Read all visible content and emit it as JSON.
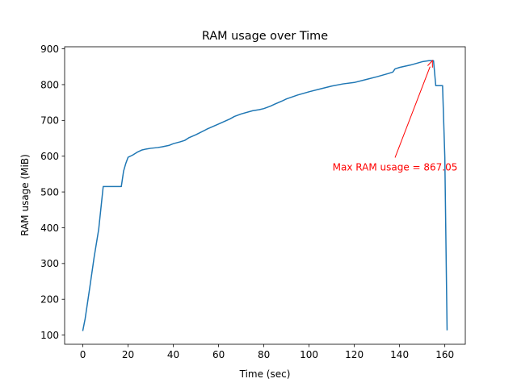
{
  "chart_data": {
    "type": "line",
    "title": "RAM usage over Time",
    "xlabel": "Time (sec)",
    "ylabel": "RAM usage (MiB)",
    "xlim": [
      -8.05,
      169.05
    ],
    "ylim": [
      74.3,
      905.8
    ],
    "x_ticks": [
      0,
      20,
      40,
      60,
      80,
      100,
      120,
      140,
      160
    ],
    "y_ticks": [
      100,
      200,
      300,
      400,
      500,
      600,
      700,
      800,
      900
    ],
    "grid": false,
    "legend": "none",
    "series": [
      {
        "color": "#1f77b4",
        "x": [
          0,
          1,
          3,
          5,
          7,
          8,
          9,
          13,
          17,
          18,
          19,
          20,
          22,
          24,
          26,
          28,
          30,
          33,
          35,
          38,
          40,
          43,
          45,
          47,
          50,
          55,
          60,
          65,
          67,
          70,
          75,
          78,
          80,
          83,
          85,
          88,
          90,
          95,
          100,
          105,
          110,
          115,
          120,
          125,
          130,
          135,
          137,
          138,
          140,
          145,
          150,
          153,
          155,
          156,
          157,
          158,
          159,
          160,
          161
        ],
        "y": [
          113,
          145,
          230,
          318,
          395,
          455,
          515,
          515,
          515,
          558,
          580,
          597,
          603,
          611,
          617,
          620,
          622,
          624,
          626,
          630,
          635,
          640,
          644,
          652,
          660,
          676,
          690,
          704,
          711,
          718,
          727,
          730,
          733,
          740,
          746,
          754,
          760,
          771,
          780,
          788,
          796,
          802,
          806,
          814,
          822,
          831,
          835,
          844,
          848,
          855,
          864,
          867,
          867,
          797,
          797,
          797,
          797,
          597,
          115
        ]
      }
    ],
    "annotation": {
      "text": "Max RAM usage = 867.05",
      "point": [
        154.5,
        867.05
      ],
      "text_pos": [
        138,
        560
      ],
      "color": "#ff0000"
    }
  }
}
